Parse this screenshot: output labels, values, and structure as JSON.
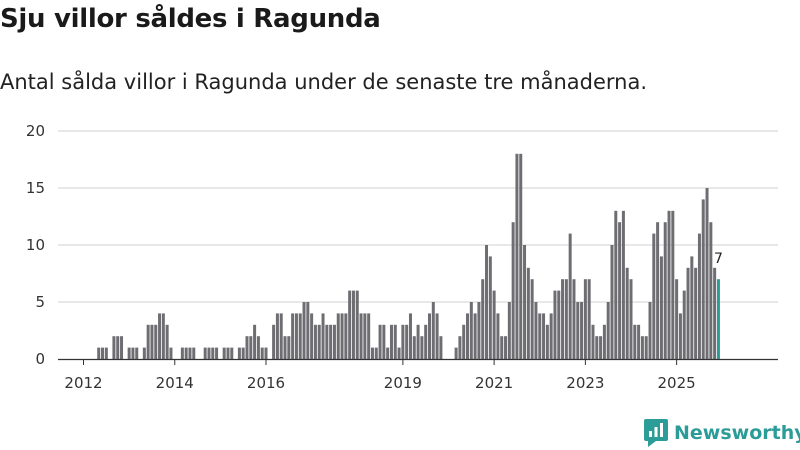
{
  "title": "Sju villor såldes i Ragunda",
  "subtitle": "Antal sålda villor i Ragunda under de senaste tre månaderna.",
  "brand": {
    "name": "Newsworthy",
    "icon": "newsworthy-logo-icon",
    "color": "#2c9c98"
  },
  "colors": {
    "bar": "#6e6d72",
    "highlight": "#2a9d96",
    "grid": "#d9d9d9",
    "axis": "#333333"
  },
  "chart_data": {
    "type": "bar",
    "title": "Sju villor såldes i Ragunda",
    "subtitle": "Antal sålda villor i Ragunda under de senaste tre månaderna.",
    "xlabel": "",
    "ylabel": "",
    "ylim": [
      0,
      20
    ],
    "yticks": [
      0,
      5,
      10,
      15,
      20
    ],
    "grid": true,
    "x_tick_labels": [
      {
        "label": "2012",
        "index": 6
      },
      {
        "label": "2014",
        "index": 30
      },
      {
        "label": "2016",
        "index": 54
      },
      {
        "label": "2019",
        "index": 90
      },
      {
        "label": "2021",
        "index": 114
      },
      {
        "label": "2023",
        "index": 138
      },
      {
        "label": "2025",
        "index": 162
      }
    ],
    "first_month": "2011-01",
    "values": [
      0,
      0,
      0,
      0,
      0,
      0,
      0,
      0,
      0,
      0,
      1,
      1,
      1,
      0,
      2,
      2,
      2,
      0,
      1,
      1,
      1,
      0,
      1,
      3,
      3,
      3,
      4,
      4,
      3,
      1,
      0,
      0,
      1,
      1,
      1,
      1,
      0,
      0,
      1,
      1,
      1,
      1,
      0,
      1,
      1,
      1,
      0,
      1,
      1,
      2,
      2,
      3,
      2,
      1,
      1,
      0,
      3,
      4,
      4,
      2,
      2,
      4,
      4,
      4,
      5,
      5,
      4,
      3,
      3,
      4,
      3,
      3,
      3,
      4,
      4,
      4,
      6,
      6,
      6,
      4,
      4,
      4,
      1,
      1,
      3,
      3,
      1,
      3,
      3,
      1,
      3,
      3,
      4,
      2,
      3,
      2,
      3,
      4,
      5,
      4,
      2,
      0,
      0,
      0,
      1,
      2,
      3,
      4,
      5,
      4,
      5,
      7,
      10,
      9,
      6,
      4,
      2,
      2,
      5,
      12,
      18,
      18,
      10,
      8,
      7,
      5,
      4,
      4,
      3,
      4,
      6,
      6,
      7,
      7,
      11,
      7,
      5,
      5,
      7,
      7,
      3,
      2,
      2,
      3,
      5,
      10,
      13,
      12,
      13,
      8,
      7,
      3,
      3,
      2,
      2,
      5,
      11,
      12,
      9,
      12,
      13,
      13,
      7,
      4,
      6,
      8,
      9,
      8,
      11,
      14,
      15,
      12,
      8,
      7
    ],
    "highlight_last": true,
    "last_value_label": "7"
  }
}
